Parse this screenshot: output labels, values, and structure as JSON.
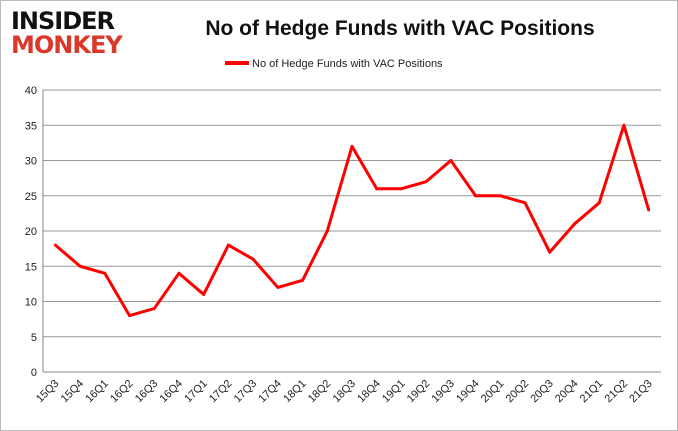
{
  "logo": {
    "line1": "INSIDER",
    "line2": "MONKEY"
  },
  "chart_data": {
    "type": "line",
    "title": "No of Hedge Funds with VAC Positions",
    "categories": [
      "15Q3",
      "15Q4",
      "16Q1",
      "16Q2",
      "16Q3",
      "16Q4",
      "17Q1",
      "17Q2",
      "17Q3",
      "17Q4",
      "18Q1",
      "18Q2",
      "18Q3",
      "18Q4",
      "19Q1",
      "19Q2",
      "19Q3",
      "19Q4",
      "20Q1",
      "20Q2",
      "20Q3",
      "20Q4",
      "21Q1",
      "21Q2",
      "21Q3"
    ],
    "series": [
      {
        "name": "No of Hedge Funds with VAC Positions",
        "color": "#ff0000",
        "values": [
          18,
          15,
          14,
          8,
          9,
          14,
          11,
          18,
          16,
          12,
          13,
          20,
          32,
          26,
          26,
          27,
          30,
          25,
          25,
          24,
          17,
          21,
          24,
          35,
          23
        ]
      }
    ],
    "ylim": [
      0,
      40
    ],
    "yticks": [
      0,
      5,
      10,
      15,
      20,
      25,
      30,
      35,
      40
    ],
    "grid": true,
    "legend": "top"
  }
}
